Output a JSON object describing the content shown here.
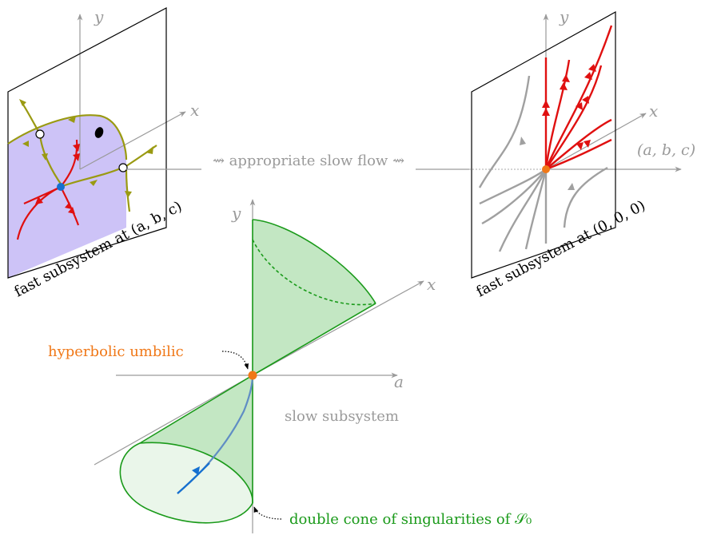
{
  "labels": {
    "y_left": "y",
    "x_left": "x",
    "y_right": "y",
    "x_right": "x",
    "abc": "(a, b, c)",
    "y_center": "y",
    "x_center": "x",
    "a_center": "a",
    "slow_flow": "⇝ appropriate slow flow ⇝",
    "fast_left": "fast subsystem at (a, b, c)",
    "fast_right": "fast subsystem at (0, 0, 0)",
    "hyperbolic": "hyperbolic umbilic",
    "slow_subsystem": "slow subsystem",
    "double_cone": "double cone of singularities of 𝒮₀"
  },
  "colors": {
    "axis": "#9a9a9a",
    "cone_edge": "#1a9a1a",
    "cone_fill": "#b9e3b9",
    "lavender": "#cdc3f7",
    "olive": "#9a9a12",
    "red": "#e01010",
    "orange": "#f07818",
    "blue": "#1570d0",
    "gray_flow": "#a0a0a0"
  }
}
